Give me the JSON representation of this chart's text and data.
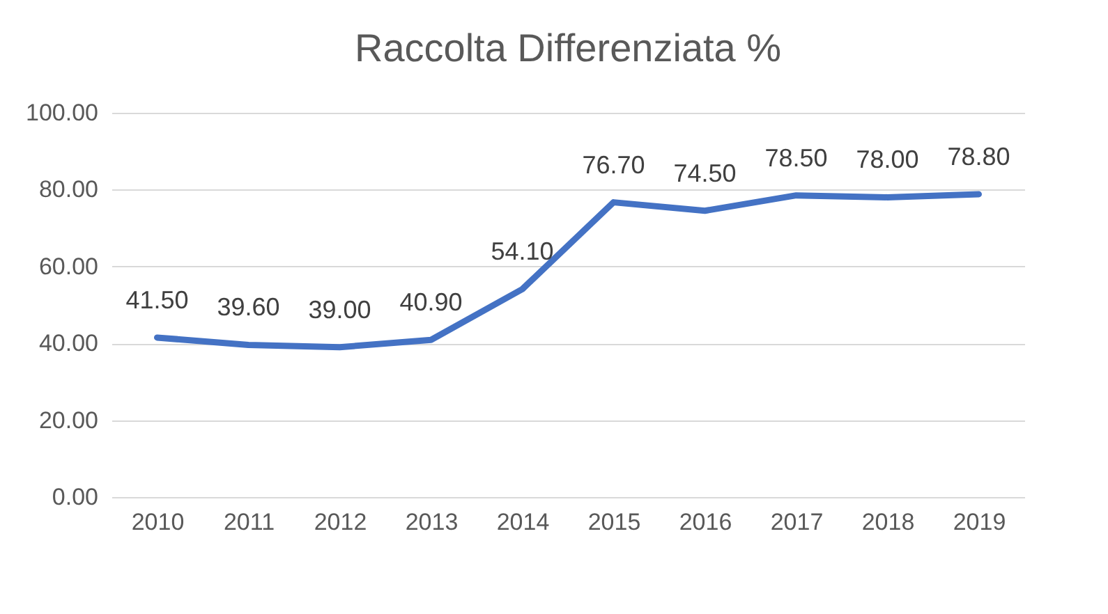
{
  "chart_data": {
    "type": "line",
    "title": "Raccolta Differenziata %",
    "categories": [
      "2010",
      "2011",
      "2012",
      "2013",
      "2014",
      "2015",
      "2016",
      "2017",
      "2018",
      "2019"
    ],
    "series": [
      {
        "color": "#4472c4",
        "values": [
          41.5,
          39.6,
          39.0,
          40.9,
          54.1,
          76.7,
          74.5,
          78.5,
          78.0,
          78.8
        ],
        "value_labels": [
          "41.50",
          "39.60",
          "39.00",
          "40.90",
          "54.10",
          "76.70",
          "74.50",
          "78.50",
          "78.00",
          "78.80"
        ]
      }
    ],
    "ylim": [
      0,
      100
    ],
    "yticks": [
      {
        "value": 0,
        "label": "0.00"
      },
      {
        "value": 20,
        "label": "20.00"
      },
      {
        "value": 40,
        "label": "40.00"
      },
      {
        "value": 60,
        "label": "60.00"
      },
      {
        "value": 80,
        "label": "80.00"
      },
      {
        "value": 100,
        "label": "100.00"
      }
    ],
    "grid": "y",
    "marker": "none",
    "line_style": "solid"
  }
}
